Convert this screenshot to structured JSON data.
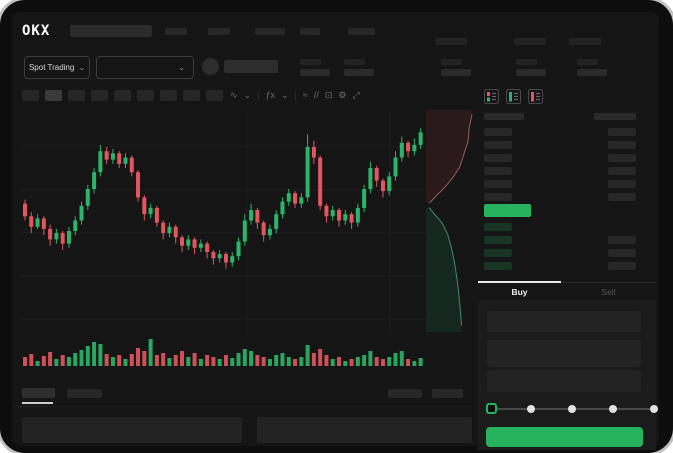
{
  "window": {
    "brand_logo": "OKX"
  },
  "header": {
    "market_mode": {
      "label": "Spot Trading",
      "chevron": "⌄"
    },
    "pair_selector": {
      "chevron": "⌄"
    }
  },
  "toolbar": {
    "icons": [
      {
        "name": "candle-style-icon",
        "glyph": "∿"
      },
      {
        "name": "chevron-down-icon",
        "glyph": "⌄"
      },
      {
        "name": "divider",
        "glyph": "|"
      },
      {
        "name": "indicators-icon",
        "glyph": "ƒx"
      },
      {
        "name": "chevron-down-icon",
        "glyph": "⌄"
      },
      {
        "name": "divider",
        "glyph": "|"
      },
      {
        "name": "line-chart-icon",
        "glyph": "≈"
      },
      {
        "name": "compare-icon",
        "glyph": "//"
      },
      {
        "name": "screenshot-icon",
        "glyph": "⊡"
      },
      {
        "name": "settings-gear-icon",
        "glyph": "⚙"
      },
      {
        "name": "fullscreen-icon",
        "glyph": "⤢"
      }
    ]
  },
  "orderbook": {
    "view_modes": [
      "book-combined-icon",
      "book-bids-only-icon",
      "book-asks-only-icon"
    ],
    "ask_rows": 6,
    "bid_rows": 4,
    "tabs": {
      "buy": "Buy",
      "sell": "Sell"
    }
  },
  "trade_panel": {
    "slider_steps": 5
  },
  "colors": {
    "candle_up": "#2cb56a",
    "candle_down": "#e4565f",
    "accent_green": "#27b35e",
    "depth_ask_fill": "#2b1a1c",
    "depth_ask_line": "#9b5a5f",
    "depth_bid_fill": "#14281f",
    "depth_bid_line": "#3e8a77",
    "bid_row_tint": "#183524",
    "tab_active": "#f0f0f0",
    "tab_inactive": "#565656"
  },
  "chart_data": {
    "type": "candlestick",
    "candles": [
      [
        63,
        65,
        55,
        57
      ],
      [
        57,
        59,
        49,
        52
      ],
      [
        52,
        58,
        51,
        56
      ],
      [
        56,
        57,
        48,
        51
      ],
      [
        51,
        53,
        43,
        46
      ],
      [
        46,
        51,
        44,
        49
      ],
      [
        49,
        50,
        41,
        44
      ],
      [
        44,
        52,
        42,
        50
      ],
      [
        50,
        57,
        48,
        55
      ],
      [
        55,
        64,
        53,
        62
      ],
      [
        62,
        72,
        60,
        70
      ],
      [
        70,
        80,
        68,
        78
      ],
      [
        78,
        91,
        76,
        88
      ],
      [
        88,
        90,
        82,
        84
      ],
      [
        84,
        89,
        82,
        87
      ],
      [
        87,
        88,
        80,
        82
      ],
      [
        82,
        87,
        80,
        85
      ],
      [
        85,
        86,
        76,
        78
      ],
      [
        78,
        79,
        64,
        66
      ],
      [
        66,
        67,
        55,
        58
      ],
      [
        58,
        63,
        56,
        61
      ],
      [
        61,
        62,
        52,
        54
      ],
      [
        54,
        55,
        46,
        49
      ],
      [
        49,
        54,
        47,
        52
      ],
      [
        52,
        53,
        44,
        47
      ],
      [
        47,
        48,
        40,
        43
      ],
      [
        43,
        48,
        41,
        46
      ],
      [
        46,
        47,
        39,
        42
      ],
      [
        42,
        46,
        40,
        44
      ],
      [
        44,
        45,
        37,
        40
      ],
      [
        40,
        41,
        34,
        37
      ],
      [
        37,
        41,
        35,
        39
      ],
      [
        39,
        40,
        32,
        35
      ],
      [
        35,
        40,
        33,
        38
      ],
      [
        38,
        47,
        36,
        45
      ],
      [
        45,
        58,
        43,
        55
      ],
      [
        55,
        63,
        53,
        60
      ],
      [
        60,
        61,
        51,
        54
      ],
      [
        54,
        55,
        45,
        48
      ],
      [
        48,
        53,
        46,
        51
      ],
      [
        51,
        60,
        49,
        58
      ],
      [
        58,
        66,
        56,
        64
      ],
      [
        64,
        70,
        62,
        68
      ],
      [
        68,
        69,
        61,
        63
      ],
      [
        63,
        68,
        61,
        66
      ],
      [
        66,
        96,
        64,
        90
      ],
      [
        90,
        93,
        82,
        85
      ],
      [
        85,
        86,
        60,
        62
      ],
      [
        62,
        63,
        54,
        57
      ],
      [
        57,
        62,
        55,
        60
      ],
      [
        60,
        61,
        52,
        55
      ],
      [
        55,
        60,
        53,
        58
      ],
      [
        58,
        59,
        51,
        54
      ],
      [
        54,
        63,
        52,
        61
      ],
      [
        61,
        72,
        59,
        70
      ],
      [
        70,
        83,
        68,
        80
      ],
      [
        80,
        81,
        71,
        74
      ],
      [
        74,
        75,
        66,
        69
      ],
      [
        69,
        78,
        67,
        76
      ],
      [
        76,
        88,
        74,
        85
      ],
      [
        85,
        95,
        83,
        92
      ],
      [
        92,
        93,
        85,
        88
      ],
      [
        88,
        94,
        86,
        91
      ],
      [
        91,
        99,
        89,
        97
      ]
    ],
    "volumes": [
      9,
      12,
      5,
      10,
      14,
      7,
      11,
      9,
      13,
      16,
      20,
      24,
      22,
      12,
      9,
      11,
      7,
      12,
      18,
      15,
      27,
      11,
      13,
      8,
      11,
      15,
      9,
      13,
      7,
      11,
      9,
      7,
      11,
      8,
      13,
      17,
      15,
      11,
      9,
      7,
      11,
      13,
      9,
      7,
      9,
      21,
      13,
      17,
      11,
      7,
      9,
      5,
      7,
      9,
      11,
      15,
      9,
      7,
      9,
      13,
      15,
      7,
      5,
      8
    ],
    "depth": {
      "asks": [
        [
          0.85,
          0.02
        ],
        [
          0.8,
          0.08
        ],
        [
          0.78,
          0.14
        ],
        [
          0.7,
          0.2
        ],
        [
          0.62,
          0.26
        ],
        [
          0.48,
          0.31
        ],
        [
          0.34,
          0.35
        ],
        [
          0.18,
          0.39
        ],
        [
          0.06,
          0.42
        ]
      ],
      "bids": [
        [
          0.06,
          0.44
        ],
        [
          0.16,
          0.47
        ],
        [
          0.3,
          0.51
        ],
        [
          0.4,
          0.56
        ],
        [
          0.47,
          0.62
        ],
        [
          0.53,
          0.69
        ],
        [
          0.58,
          0.77
        ],
        [
          0.62,
          0.86
        ],
        [
          0.66,
          0.97
        ]
      ]
    }
  }
}
